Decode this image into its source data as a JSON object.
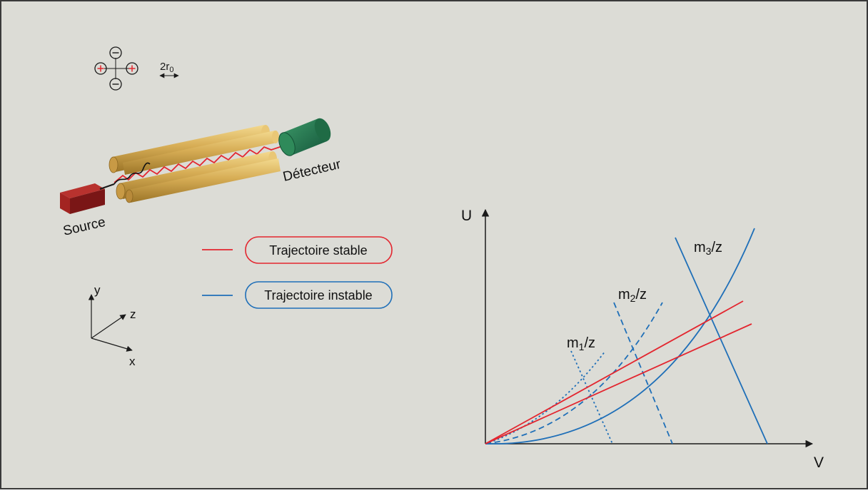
{
  "colors": {
    "background": "#dcdcd6",
    "border": "#3a3a3a",
    "stable": "#e3262f",
    "unstable": "#1f6fb8",
    "axis": "#1a1a1a",
    "rod": "#d9b25a",
    "source": "#8e1b1b",
    "detector": "#1f6b45"
  },
  "quadrupole_icon": {
    "positive_sign": "+",
    "negative_sign": "−",
    "spacing_label_main": "2r",
    "spacing_label_sub": "0"
  },
  "apparatus": {
    "source_label": "Source",
    "detector_label": "Détecteur"
  },
  "legend": {
    "stable_label": "Trajectoire stable",
    "unstable_label": "Trajectoire instable"
  },
  "axes_3d": {
    "x_label": "x",
    "y_label": "y",
    "z_label": "z"
  },
  "chart": {
    "x_axis_label": "V",
    "y_axis_label": "U",
    "curves": [
      {
        "main": "m",
        "sub": "1",
        "suffix": "/z",
        "style": "dotted"
      },
      {
        "main": "m",
        "sub": "2",
        "suffix": "/z",
        "style": "dashed"
      },
      {
        "main": "m",
        "sub": "3",
        "suffix": "/z",
        "style": "solid"
      }
    ]
  }
}
